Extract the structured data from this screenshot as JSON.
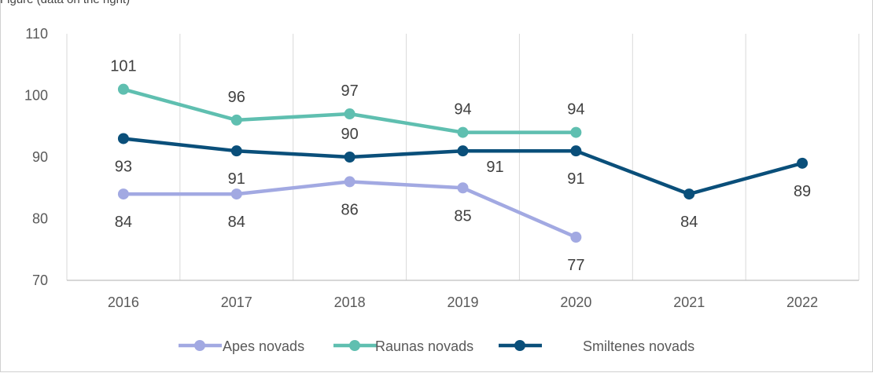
{
  "caption": "Figure (data on the right)",
  "chart_data": {
    "type": "line",
    "title": "",
    "xlabel": "",
    "ylabel": "",
    "x": [
      "2016",
      "2017",
      "2018",
      "2019",
      "2020",
      "2021",
      "2022"
    ],
    "ylim": [
      70,
      110
    ],
    "yticks": [
      70,
      80,
      90,
      100,
      110
    ],
    "grid": "vertical",
    "legend": "bottom",
    "series": [
      {
        "name": "Apes novads",
        "color": "#a2a9e2",
        "values": [
          84,
          84,
          86,
          85,
          77,
          null,
          null
        ],
        "label_pos": [
          "below",
          "below",
          "below",
          "below",
          "below",
          null,
          null
        ]
      },
      {
        "name": "Raunas novads",
        "color": "#5fbfb0",
        "values": [
          101,
          96,
          97,
          94,
          94,
          null,
          null
        ],
        "label_pos": [
          "above",
          "above",
          "above",
          "above",
          "above",
          null,
          null
        ]
      },
      {
        "name": "Smiltenes novads",
        "color": "#0a4f7a",
        "values": [
          93,
          91,
          90,
          91,
          91,
          84,
          89
        ],
        "label_pos": [
          "below",
          "below",
          "above",
          "below-right",
          "below",
          "below",
          "below"
        ]
      }
    ]
  }
}
